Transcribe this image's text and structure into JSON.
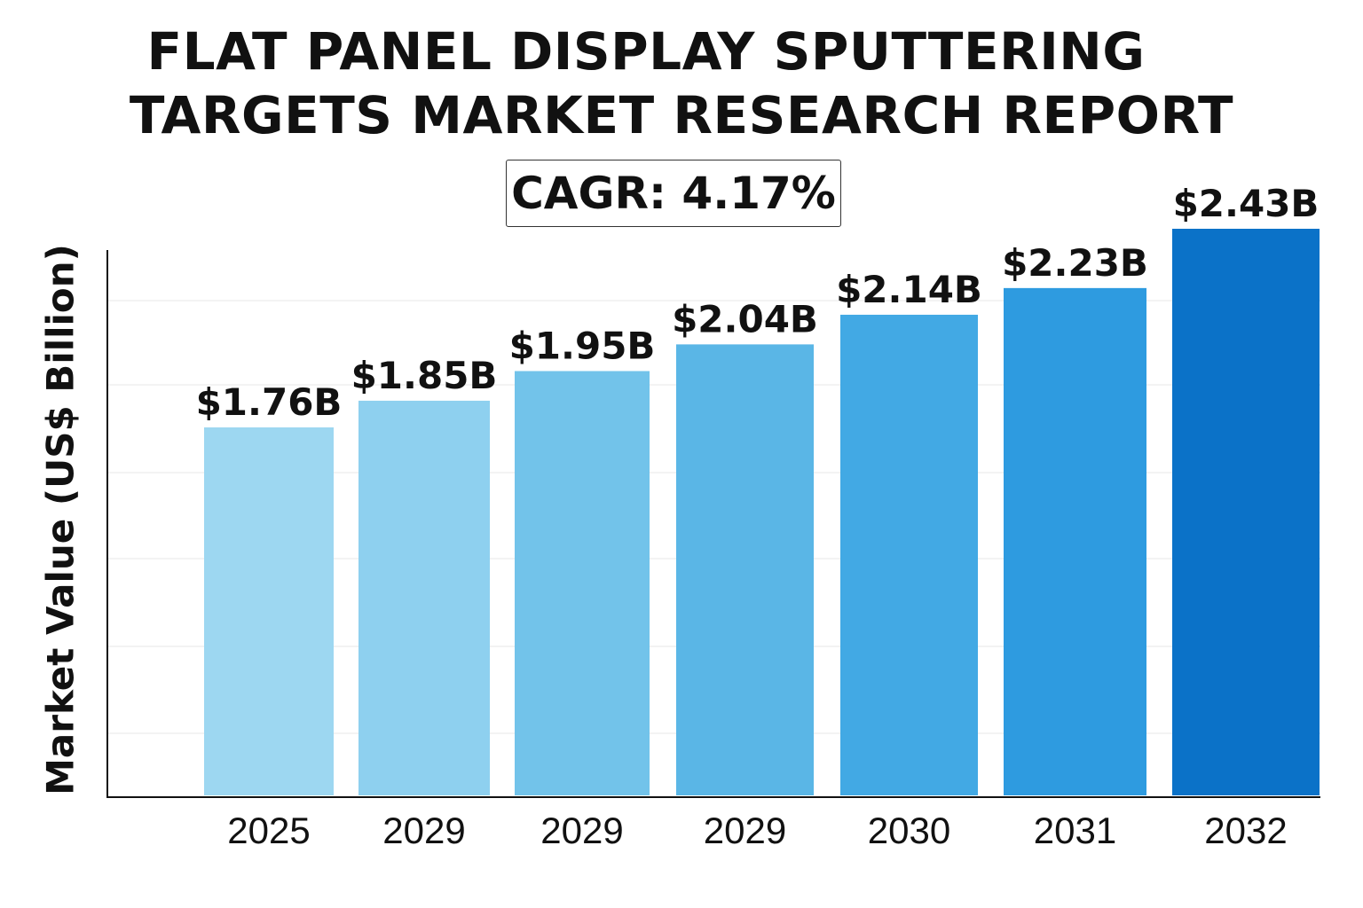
{
  "chart_data": {
    "type": "bar",
    "title": "FLAT PANEL DISPLAY SPUTTERING TARGETS MARKET RESEARCH REPORT",
    "title_lines": [
      "FLAT PANEL DISPLAY SPUTTERING",
      "TARGETS MARKET RESEARCH REPORT"
    ],
    "subtitle": "CAGR: 4.17%",
    "xlabel": "",
    "ylabel": "Market Value (US$ Billion)",
    "categories": [
      "2025",
      "2029",
      "2029",
      "2029",
      "2030",
      "2031",
      "2032"
    ],
    "values": [
      1.76,
      1.85,
      1.95,
      2.04,
      2.14,
      2.23,
      2.43
    ],
    "data_labels": [
      "$1.76B",
      "$1.85B",
      "$1.95B",
      "$2.04B",
      "$2.14B",
      "$2.23B",
      "$2.43B"
    ],
    "bar_colors": [
      "#9dd7f1",
      "#8ed0ef",
      "#72c3ea",
      "#5ab6e6",
      "#42a9e4",
      "#2e9be0",
      "#0b72c8"
    ],
    "gridlines": true,
    "legend": "none"
  }
}
